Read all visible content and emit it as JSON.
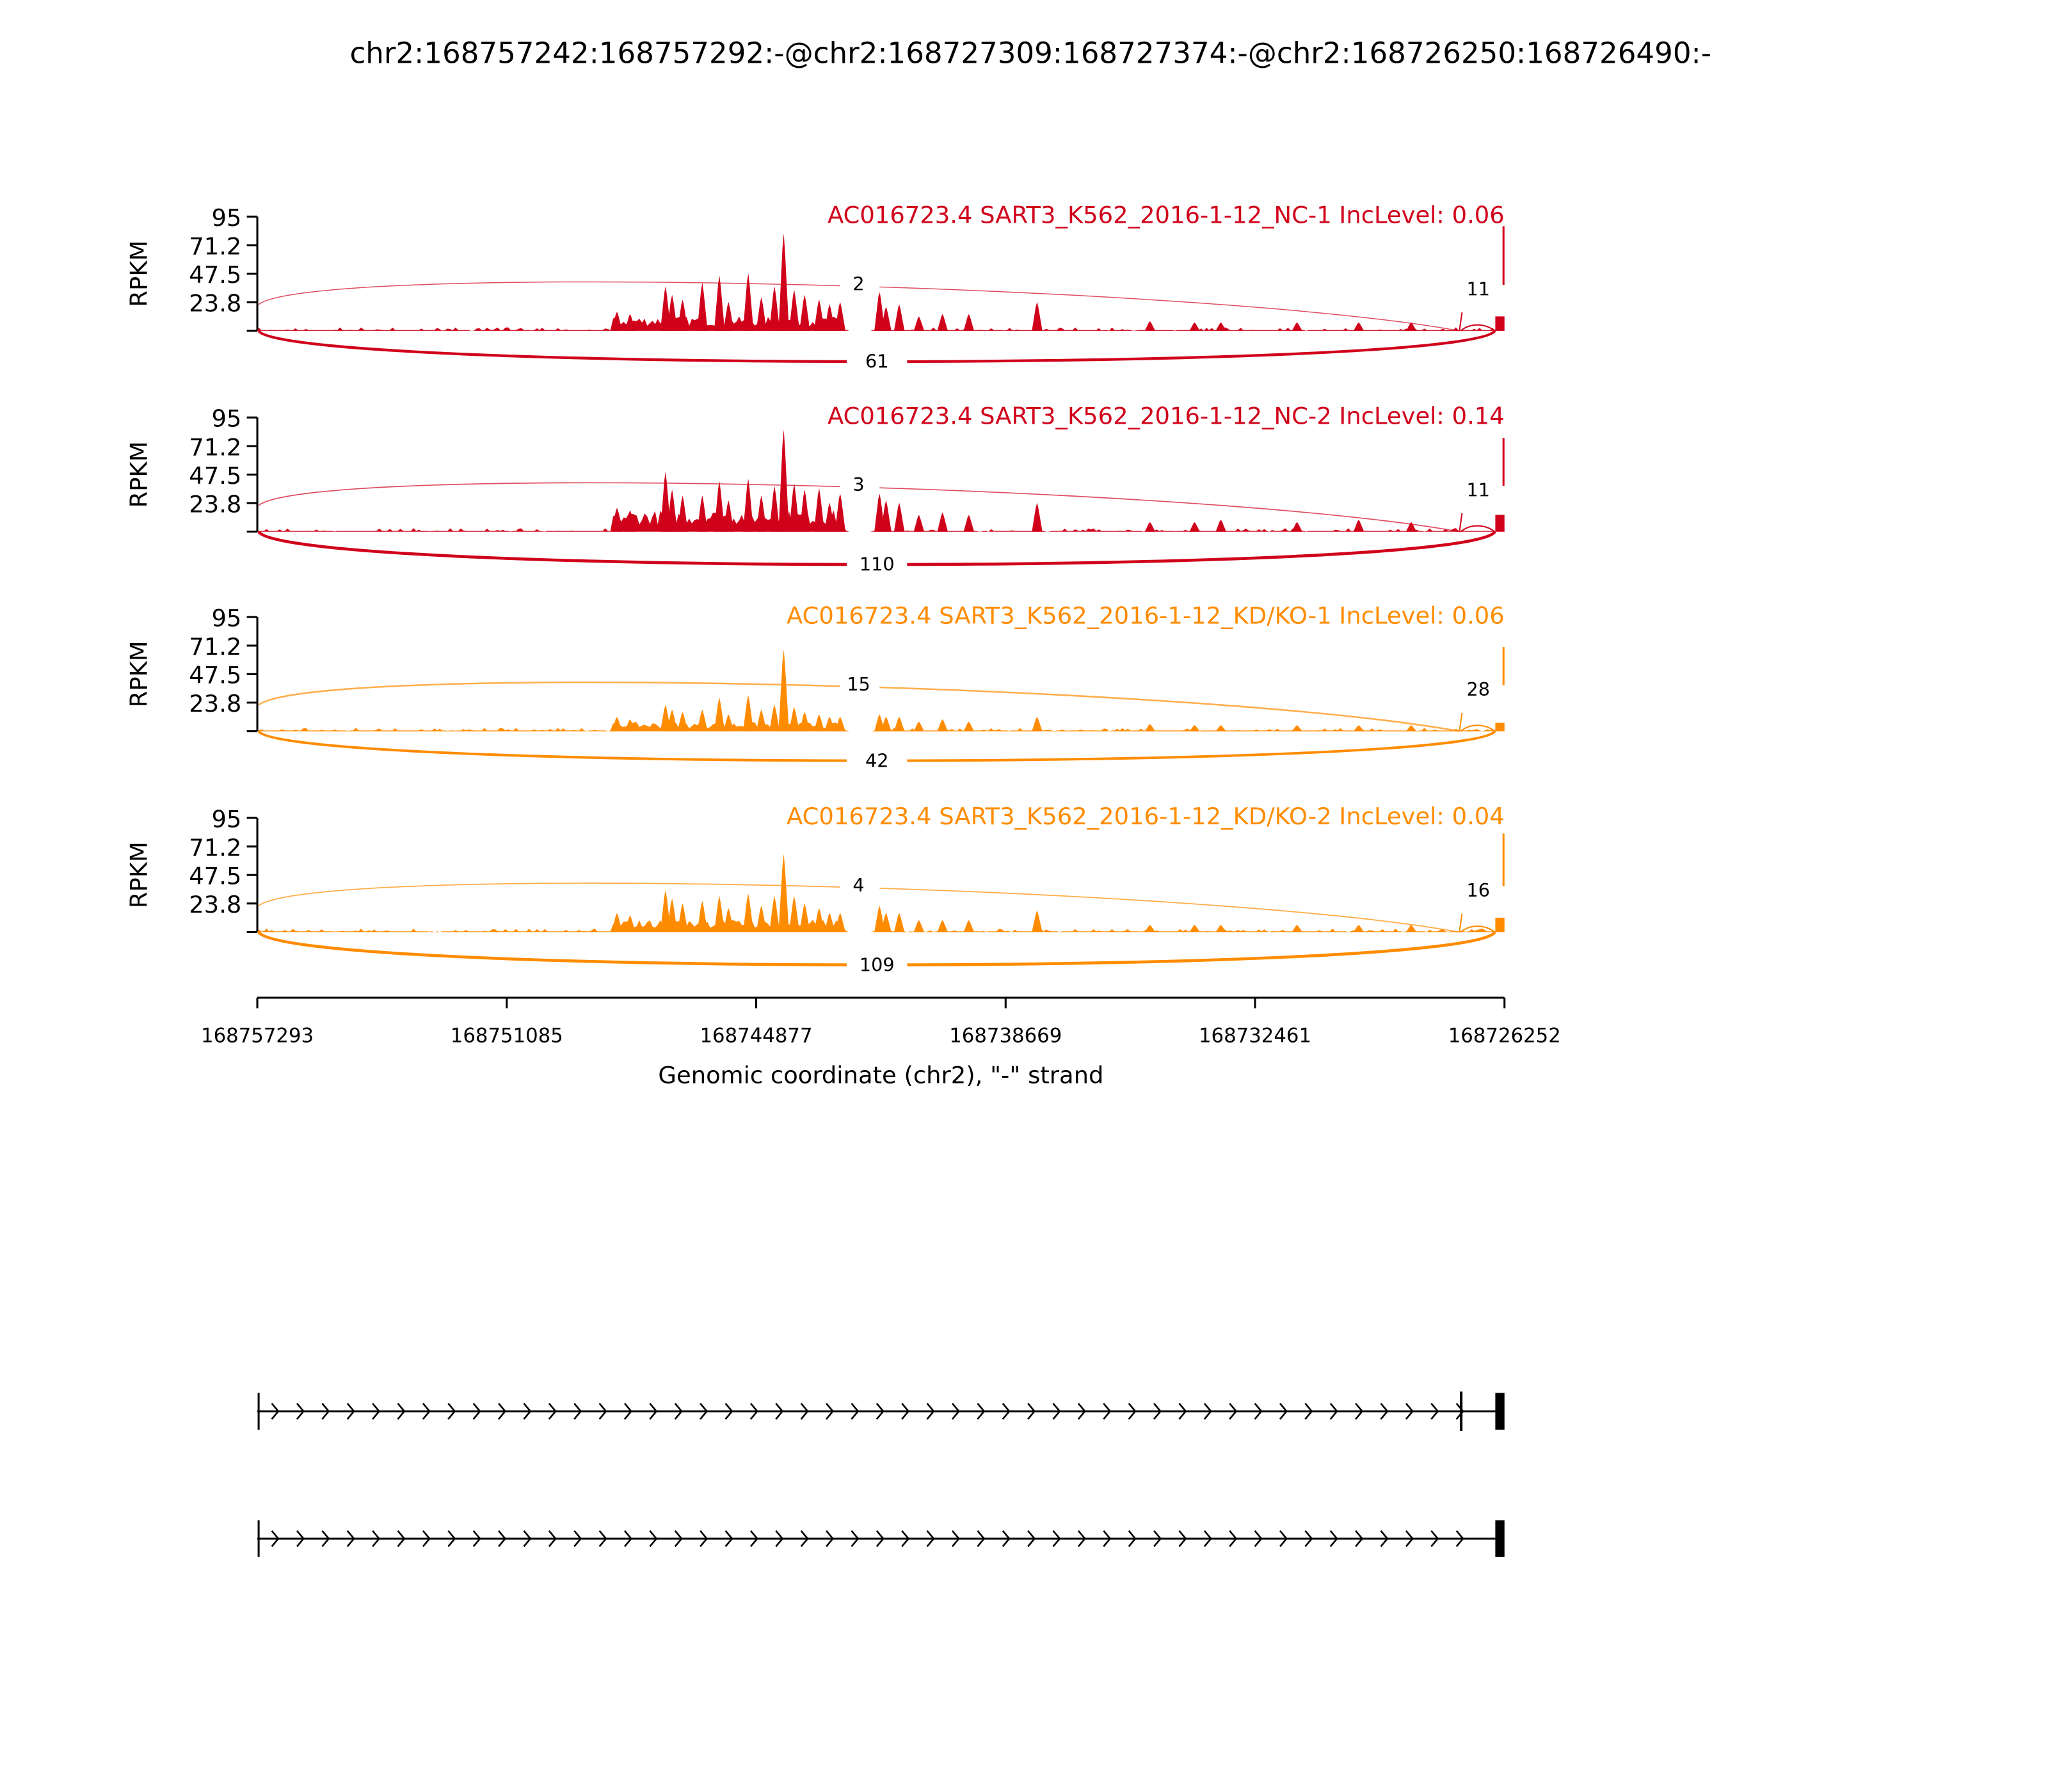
{
  "chart_data": {
    "type": "area",
    "title": "chr2:168757242:168757292:-@chr2:168727309:168727374:-@chr2:168726250:168726490:-",
    "xlabel": "Genomic coordinate (chr2), \"-\" strand",
    "ylabel": "RPKM",
    "xlim": [
      168757293,
      168726252
    ],
    "ylim": [
      0,
      95
    ],
    "x_ticks": [
      "168757293",
      "168751085",
      "168744877",
      "168738669",
      "168732461",
      "168726252"
    ],
    "y_ticks": [
      "95",
      "71.2",
      "47.5",
      "23.8"
    ],
    "peak_coords": [
      168748340,
      168748013,
      168747131,
      168746968,
      168746706,
      168746216,
      168745791,
      168745563,
      168745073,
      168744746,
      168744419,
      168744190,
      168743929,
      168743668,
      168743308,
      168743047,
      168742785,
      168741805,
      168741642,
      168741315,
      168740825,
      168740237,
      168739583,
      168737884,
      168735074,
      168733963,
      168733309,
      168731414,
      168729879,
      168728572
    ],
    "dense_region": [
      168748460,
      168742700
    ],
    "exon_coords": {
      "exon1_end": 168757292,
      "exon2": [
        168727374,
        168727309
      ],
      "exon3_start": 168726490
    },
    "samples": [
      {
        "title": "AC016723.4 SART3_K562_2016-1-12_NC-1 IncLevel: 0.06",
        "color": "#d0021b",
        "dense_base": 8,
        "peak_rpkm": [
          16,
          14,
          37,
          30,
          26,
          40,
          46,
          24,
          48,
          28,
          37,
          81,
          34,
          30,
          26,
          22,
          24,
          33,
          20,
          22,
          12,
          14,
          14,
          24,
          8,
          7,
          7,
          7,
          7,
          7
        ],
        "exon3_rpkm": 12,
        "last_rpkm": 87,
        "junctions": {
          "inclusion_1": "2",
          "inclusion_2": "11",
          "skipping": "61"
        }
      },
      {
        "title": "AC016723.4 SART3_K562_2016-1-12_NC-2 IncLevel: 0.14",
        "color": "#d0021b",
        "dense_base": 12,
        "peak_rpkm": [
          20,
          18,
          50,
          35,
          30,
          30,
          42,
          26,
          44,
          30,
          38,
          85,
          40,
          35,
          36,
          24,
          32,
          32,
          26,
          24,
          14,
          16,
          14,
          24,
          8,
          8,
          10,
          8,
          10,
          8
        ],
        "exon3_rpkm": 14,
        "last_rpkm": 78,
        "junctions": {
          "inclusion_1": "3",
          "inclusion_2": "11",
          "skipping": "110"
        }
      },
      {
        "title": "AC016723.4 SART3_K562_2016-1-12_KD/KO-1 IncLevel: 0.06",
        "color": "#ff8c00",
        "dense_base": 5,
        "peak_rpkm": [
          12,
          10,
          22,
          18,
          16,
          18,
          28,
          14,
          30,
          18,
          22,
          68,
          20,
          16,
          14,
          12,
          12,
          14,
          12,
          12,
          8,
          10,
          8,
          12,
          6,
          5,
          5,
          5,
          5,
          5
        ],
        "exon3_rpkm": 7,
        "last_rpkm": 70,
        "junctions": {
          "inclusion_1": "15",
          "inclusion_2": "28",
          "skipping": "42"
        }
      },
      {
        "title": "AC016723.4 SART3_K562_2016-1-12_KD/KO-2 IncLevel: 0.04",
        "color": "#ff8c00",
        "dense_base": 7,
        "peak_rpkm": [
          16,
          14,
          35,
          28,
          24,
          26,
          30,
          20,
          32,
          22,
          30,
          65,
          30,
          24,
          20,
          16,
          16,
          22,
          16,
          16,
          10,
          10,
          10,
          18,
          6,
          6,
          6,
          6,
          6,
          6
        ],
        "exon3_rpkm": 12,
        "last_rpkm": 82,
        "junctions": {
          "inclusion_1": "4",
          "inclusion_2": "16",
          "skipping": "109"
        }
      }
    ],
    "gene_models": [
      {
        "exons": [
          "exon1",
          "exon2",
          "exon3"
        ]
      },
      {
        "exons": [
          "exon1",
          "exon3"
        ]
      }
    ],
    "grid": false,
    "legend": "none"
  }
}
